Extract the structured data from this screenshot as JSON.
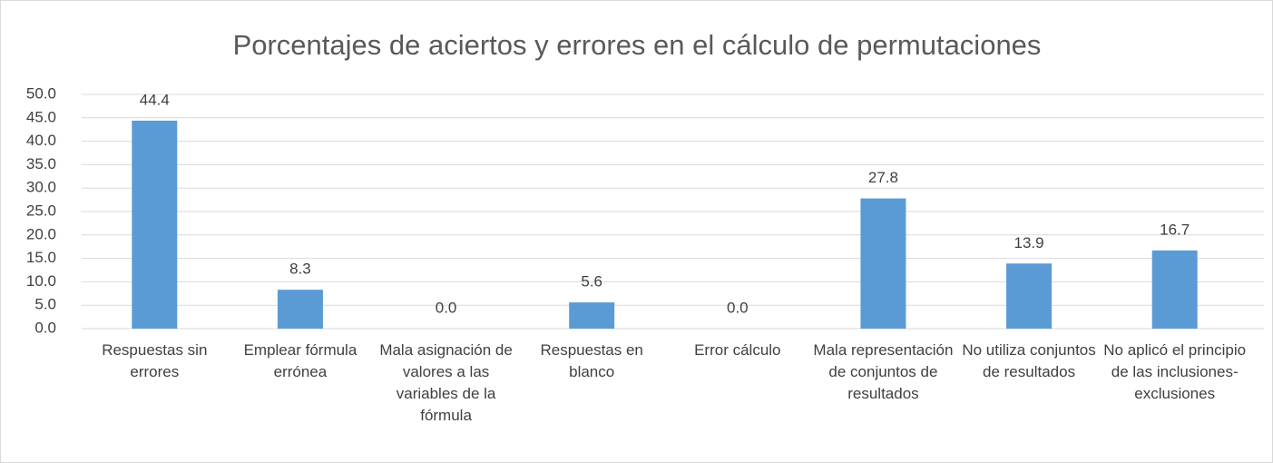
{
  "chart_data": {
    "type": "bar",
    "title": "Porcentajes de aciertos y errores en el cálculo de permutaciones",
    "categories": [
      "Respuestas sin errores",
      "Emplear fórmula errónea",
      "Mala asignación de valores a las variables de la fórmula",
      "Respuestas en blanco",
      "Error cálculo",
      "Mala representación de conjuntos de resultados",
      "No utiliza conjuntos de resultados",
      "No aplicó el principio de las inclusiones-exclusiones"
    ],
    "values": [
      44.4,
      8.3,
      0,
      5.6,
      0,
      27.8,
      13.9,
      16.7
    ],
    "value_labels": [
      "44.4",
      "8.3",
      "0.0",
      "5.6",
      "0.0",
      "27.8",
      "13.9",
      "16.7"
    ],
    "color": "#5b9bd5",
    "ylim": [
      0,
      50
    ],
    "yticks": [
      {
        "value": 0,
        "label": "0.0"
      },
      {
        "value": 5,
        "label": "5.0"
      },
      {
        "value": 10,
        "label": "10.0"
      },
      {
        "value": 15,
        "label": "15.0"
      },
      {
        "value": 20,
        "label": "20.0"
      },
      {
        "value": 25,
        "label": "25.0"
      },
      {
        "value": 30,
        "label": "30.0"
      },
      {
        "value": 35,
        "label": "35.0"
      },
      {
        "value": 40,
        "label": "40.0"
      },
      {
        "value": 45,
        "label": "45.0"
      },
      {
        "value": 50,
        "label": "50.0"
      }
    ],
    "grid": true
  }
}
